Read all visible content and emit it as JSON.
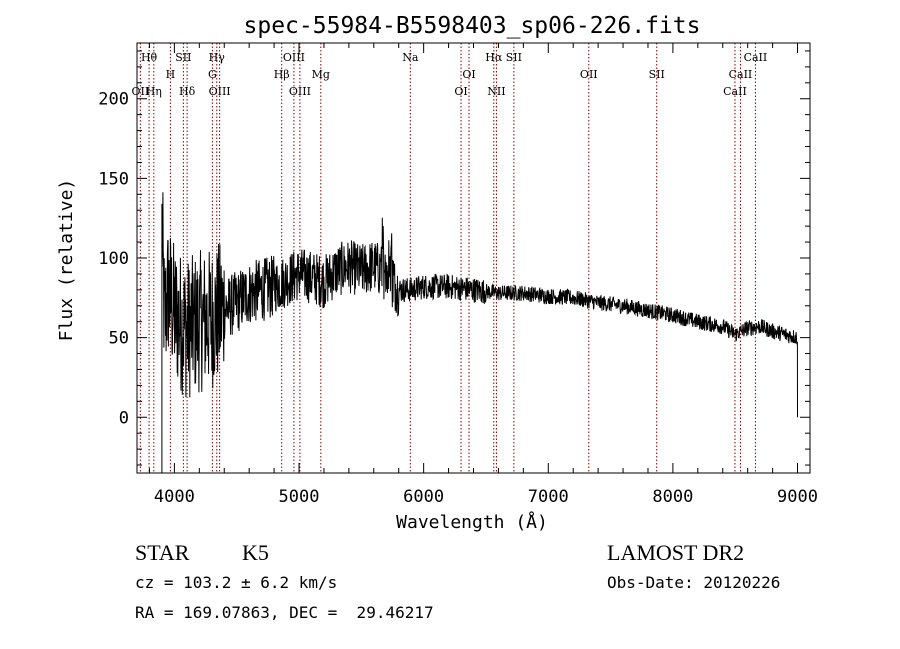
{
  "chart_data": {
    "type": "line",
    "title": "spec-55984-B5598403_sp06-226.fits",
    "xlabel": "Wavelength (Å)",
    "ylabel": "Flux (relative)",
    "xlim": [
      3700,
      9100
    ],
    "ylim": [
      -35,
      235
    ],
    "xticks": [
      4000,
      5000,
      6000,
      7000,
      8000,
      9000
    ],
    "yticks": [
      0,
      50,
      100,
      150,
      200
    ],
    "grid": false,
    "line_color": "#000000",
    "marker_color": "#8b0000",
    "spectrum_anchors": {
      "wavelength": [
        3900,
        3920,
        3950,
        4000,
        4100,
        4200,
        4300,
        4400,
        4500,
        4600,
        4700,
        4800,
        4900,
        5000,
        5100,
        5200,
        5300,
        5400,
        5500,
        5600,
        5700,
        5800,
        5900,
        6000,
        6200,
        6400,
        6600,
        6800,
        7000,
        7200,
        7400,
        7600,
        7800,
        8000,
        8200,
        8400,
        8500,
        8600,
        8700,
        8800,
        8900,
        9000
      ],
      "flux": [
        120,
        60,
        80,
        65,
        55,
        60,
        62,
        68,
        72,
        78,
        80,
        82,
        86,
        90,
        88,
        85,
        92,
        95,
        92,
        95,
        90,
        80,
        80,
        82,
        82,
        80,
        78,
        78,
        76,
        75,
        72,
        70,
        67,
        64,
        60,
        57,
        52,
        56,
        57,
        54,
        52,
        50
      ]
    },
    "line_markers": [
      {
        "label": "Hθ",
        "x": 3797,
        "row": 1
      },
      {
        "label": "H",
        "x": 3968,
        "row": 2
      },
      {
        "label": "SII",
        "x": 4072,
        "row": 1
      },
      {
        "label": "Hγ",
        "x": 4340,
        "row": 1
      },
      {
        "label": "G",
        "x": 4305,
        "row": 2
      },
      {
        "label": "OII",
        "x": 3727,
        "row": 3
      },
      {
        "label": "Hη",
        "x": 3835,
        "row": 3
      },
      {
        "label": "Hδ",
        "x": 4102,
        "row": 3
      },
      {
        "label": "OIII",
        "x": 4363,
        "row": 3
      },
      {
        "label": "OIII",
        "x": 4959,
        "row": 1
      },
      {
        "label": "Hβ",
        "x": 4861,
        "row": 2
      },
      {
        "label": "Mg",
        "x": 5175,
        "row": 2
      },
      {
        "label": "OIII",
        "x": 5007,
        "row": 3
      },
      {
        "label": "Na",
        "x": 5893,
        "row": 1
      },
      {
        "label": "OI",
        "x": 6364,
        "row": 2
      },
      {
        "label": "OI",
        "x": 6300,
        "row": 3
      },
      {
        "label": "Hα",
        "x": 6563,
        "row": 1
      },
      {
        "label": "SII",
        "x": 6724,
        "row": 1
      },
      {
        "label": "NII",
        "x": 6584,
        "row": 3
      },
      {
        "label": "OII",
        "x": 7325,
        "row": 2
      },
      {
        "label": "SII",
        "x": 7870,
        "row": 2
      },
      {
        "label": "CaII",
        "x": 8662,
        "row": 1
      },
      {
        "label": "CaII",
        "x": 8542,
        "row": 2
      },
      {
        "label": "CaII",
        "x": 8498,
        "row": 3
      }
    ]
  },
  "footer": {
    "object_type": "STAR",
    "subclass": "K5",
    "survey": "LAMOST DR2",
    "cz": "cz = 103.2 ± 6.2 km/s",
    "obs_date": "Obs-Date: 20120226",
    "coords": "RA = 169.07863, DEC =  29.46217"
  }
}
